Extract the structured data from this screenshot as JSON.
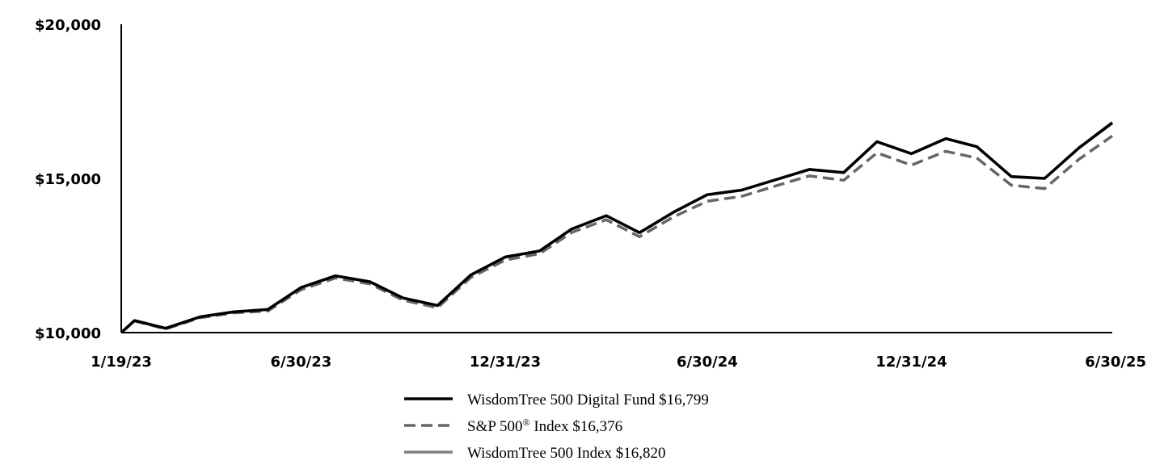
{
  "chart_data": {
    "type": "line",
    "title": "",
    "xlabel": "",
    "ylabel": "",
    "ylim": [
      10000,
      20000
    ],
    "y_ticks": [
      {
        "value": 10000,
        "label": "$10,000"
      },
      {
        "value": 15000,
        "label": "$15,000"
      },
      {
        "value": 20000,
        "label": "$20,000"
      }
    ],
    "x_ticks": [
      {
        "date": "2023-01-19",
        "label": "1/19/23"
      },
      {
        "date": "2023-06-30",
        "label": "6/30/23"
      },
      {
        "date": "2023-12-31",
        "label": "12/31/23"
      },
      {
        "date": "2024-06-30",
        "label": "6/30/24"
      },
      {
        "date": "2024-12-31",
        "label": "12/31/24"
      },
      {
        "date": "2025-06-30",
        "label": "6/30/25"
      }
    ],
    "x": [
      "2023-01-19",
      "2023-01-31",
      "2023-02-28",
      "2023-03-31",
      "2023-04-30",
      "2023-05-31",
      "2023-06-30",
      "2023-07-31",
      "2023-08-31",
      "2023-09-30",
      "2023-10-31",
      "2023-11-30",
      "2023-12-31",
      "2024-01-31",
      "2024-02-29",
      "2024-03-31",
      "2024-04-30",
      "2024-05-31",
      "2024-06-30",
      "2024-07-31",
      "2024-08-31",
      "2024-09-30",
      "2024-10-31",
      "2024-11-30",
      "2024-12-31",
      "2025-01-31",
      "2025-02-28",
      "2025-03-31",
      "2025-04-30",
      "2025-05-31",
      "2025-06-30"
    ],
    "series": [
      {
        "name": "WisdomTree 500 Digital Fund $16,799",
        "style": "solid-black",
        "color": "#000000",
        "values": [
          10000,
          10390,
          10140,
          10510,
          10670,
          10750,
          11460,
          11840,
          11650,
          11120,
          10880,
          11870,
          12450,
          12650,
          13360,
          13790,
          13240,
          13910,
          14470,
          14620,
          14960,
          15290,
          15190,
          16190,
          15800,
          16290,
          16030,
          15060,
          15000,
          15990,
          16799
        ]
      },
      {
        "name": "S&P 500",
        "name_sup": "®",
        "name_suffix": " Index $16,376",
        "style": "dashed-gray",
        "color": "#666666",
        "values": [
          10000,
          10380,
          10120,
          10480,
          10640,
          10700,
          11390,
          11770,
          11580,
          11050,
          10810,
          11790,
          12350,
          12560,
          13250,
          13660,
          13110,
          13760,
          14260,
          14420,
          14760,
          15080,
          14940,
          15830,
          15430,
          15880,
          15660,
          14780,
          14670,
          15620,
          16376
        ]
      },
      {
        "name": "WisdomTree 500 Index $16,820",
        "style": "solid-gray",
        "color": "#808080",
        "values": [
          10000,
          10390,
          10140,
          10510,
          10670,
          10750,
          11460,
          11840,
          11650,
          11120,
          10880,
          11870,
          12450,
          12650,
          13360,
          13790,
          13240,
          13910,
          14470,
          14620,
          14960,
          15290,
          15190,
          16190,
          15800,
          16290,
          16030,
          15060,
          15000,
          15990,
          16820
        ]
      }
    ],
    "grid": false,
    "legend_position": "bottom"
  }
}
